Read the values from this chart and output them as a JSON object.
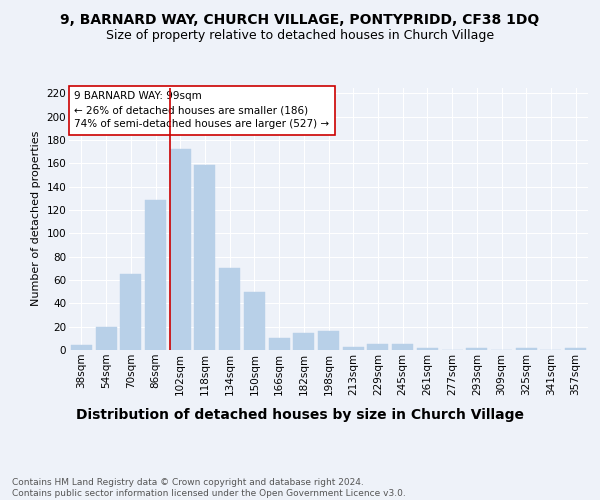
{
  "title1": "9, BARNARD WAY, CHURCH VILLAGE, PONTYPRIDD, CF38 1DQ",
  "title2": "Size of property relative to detached houses in Church Village",
  "xlabel": "Distribution of detached houses by size in Church Village",
  "ylabel": "Number of detached properties",
  "categories": [
    "38sqm",
    "54sqm",
    "70sqm",
    "86sqm",
    "102sqm",
    "118sqm",
    "134sqm",
    "150sqm",
    "166sqm",
    "182sqm",
    "198sqm",
    "213sqm",
    "229sqm",
    "245sqm",
    "261sqm",
    "277sqm",
    "293sqm",
    "309sqm",
    "325sqm",
    "341sqm",
    "357sqm"
  ],
  "values": [
    4,
    20,
    65,
    129,
    172,
    159,
    70,
    50,
    10,
    15,
    16,
    3,
    5,
    5,
    2,
    0,
    2,
    0,
    2,
    0,
    2
  ],
  "bar_color": "#b8d0e8",
  "bar_edge_color": "#b8d0e8",
  "property_line_x": 4,
  "property_line_color": "#cc0000",
  "annotation_text": "9 BARNARD WAY: 99sqm\n← 26% of detached houses are smaller (186)\n74% of semi-detached houses are larger (527) →",
  "annotation_box_color": "#ffffff",
  "annotation_box_edge": "#cc0000",
  "background_color": "#eef2f9",
  "plot_bg_color": "#eef2f9",
  "ylim": [
    0,
    225
  ],
  "yticks": [
    0,
    20,
    40,
    60,
    80,
    100,
    120,
    140,
    160,
    180,
    200,
    220
  ],
  "footnote": "Contains HM Land Registry data © Crown copyright and database right 2024.\nContains public sector information licensed under the Open Government Licence v3.0.",
  "title1_fontsize": 10,
  "title2_fontsize": 9,
  "xlabel_fontsize": 10,
  "ylabel_fontsize": 8,
  "tick_fontsize": 7.5,
  "annot_fontsize": 7.5,
  "footnote_fontsize": 6.5
}
